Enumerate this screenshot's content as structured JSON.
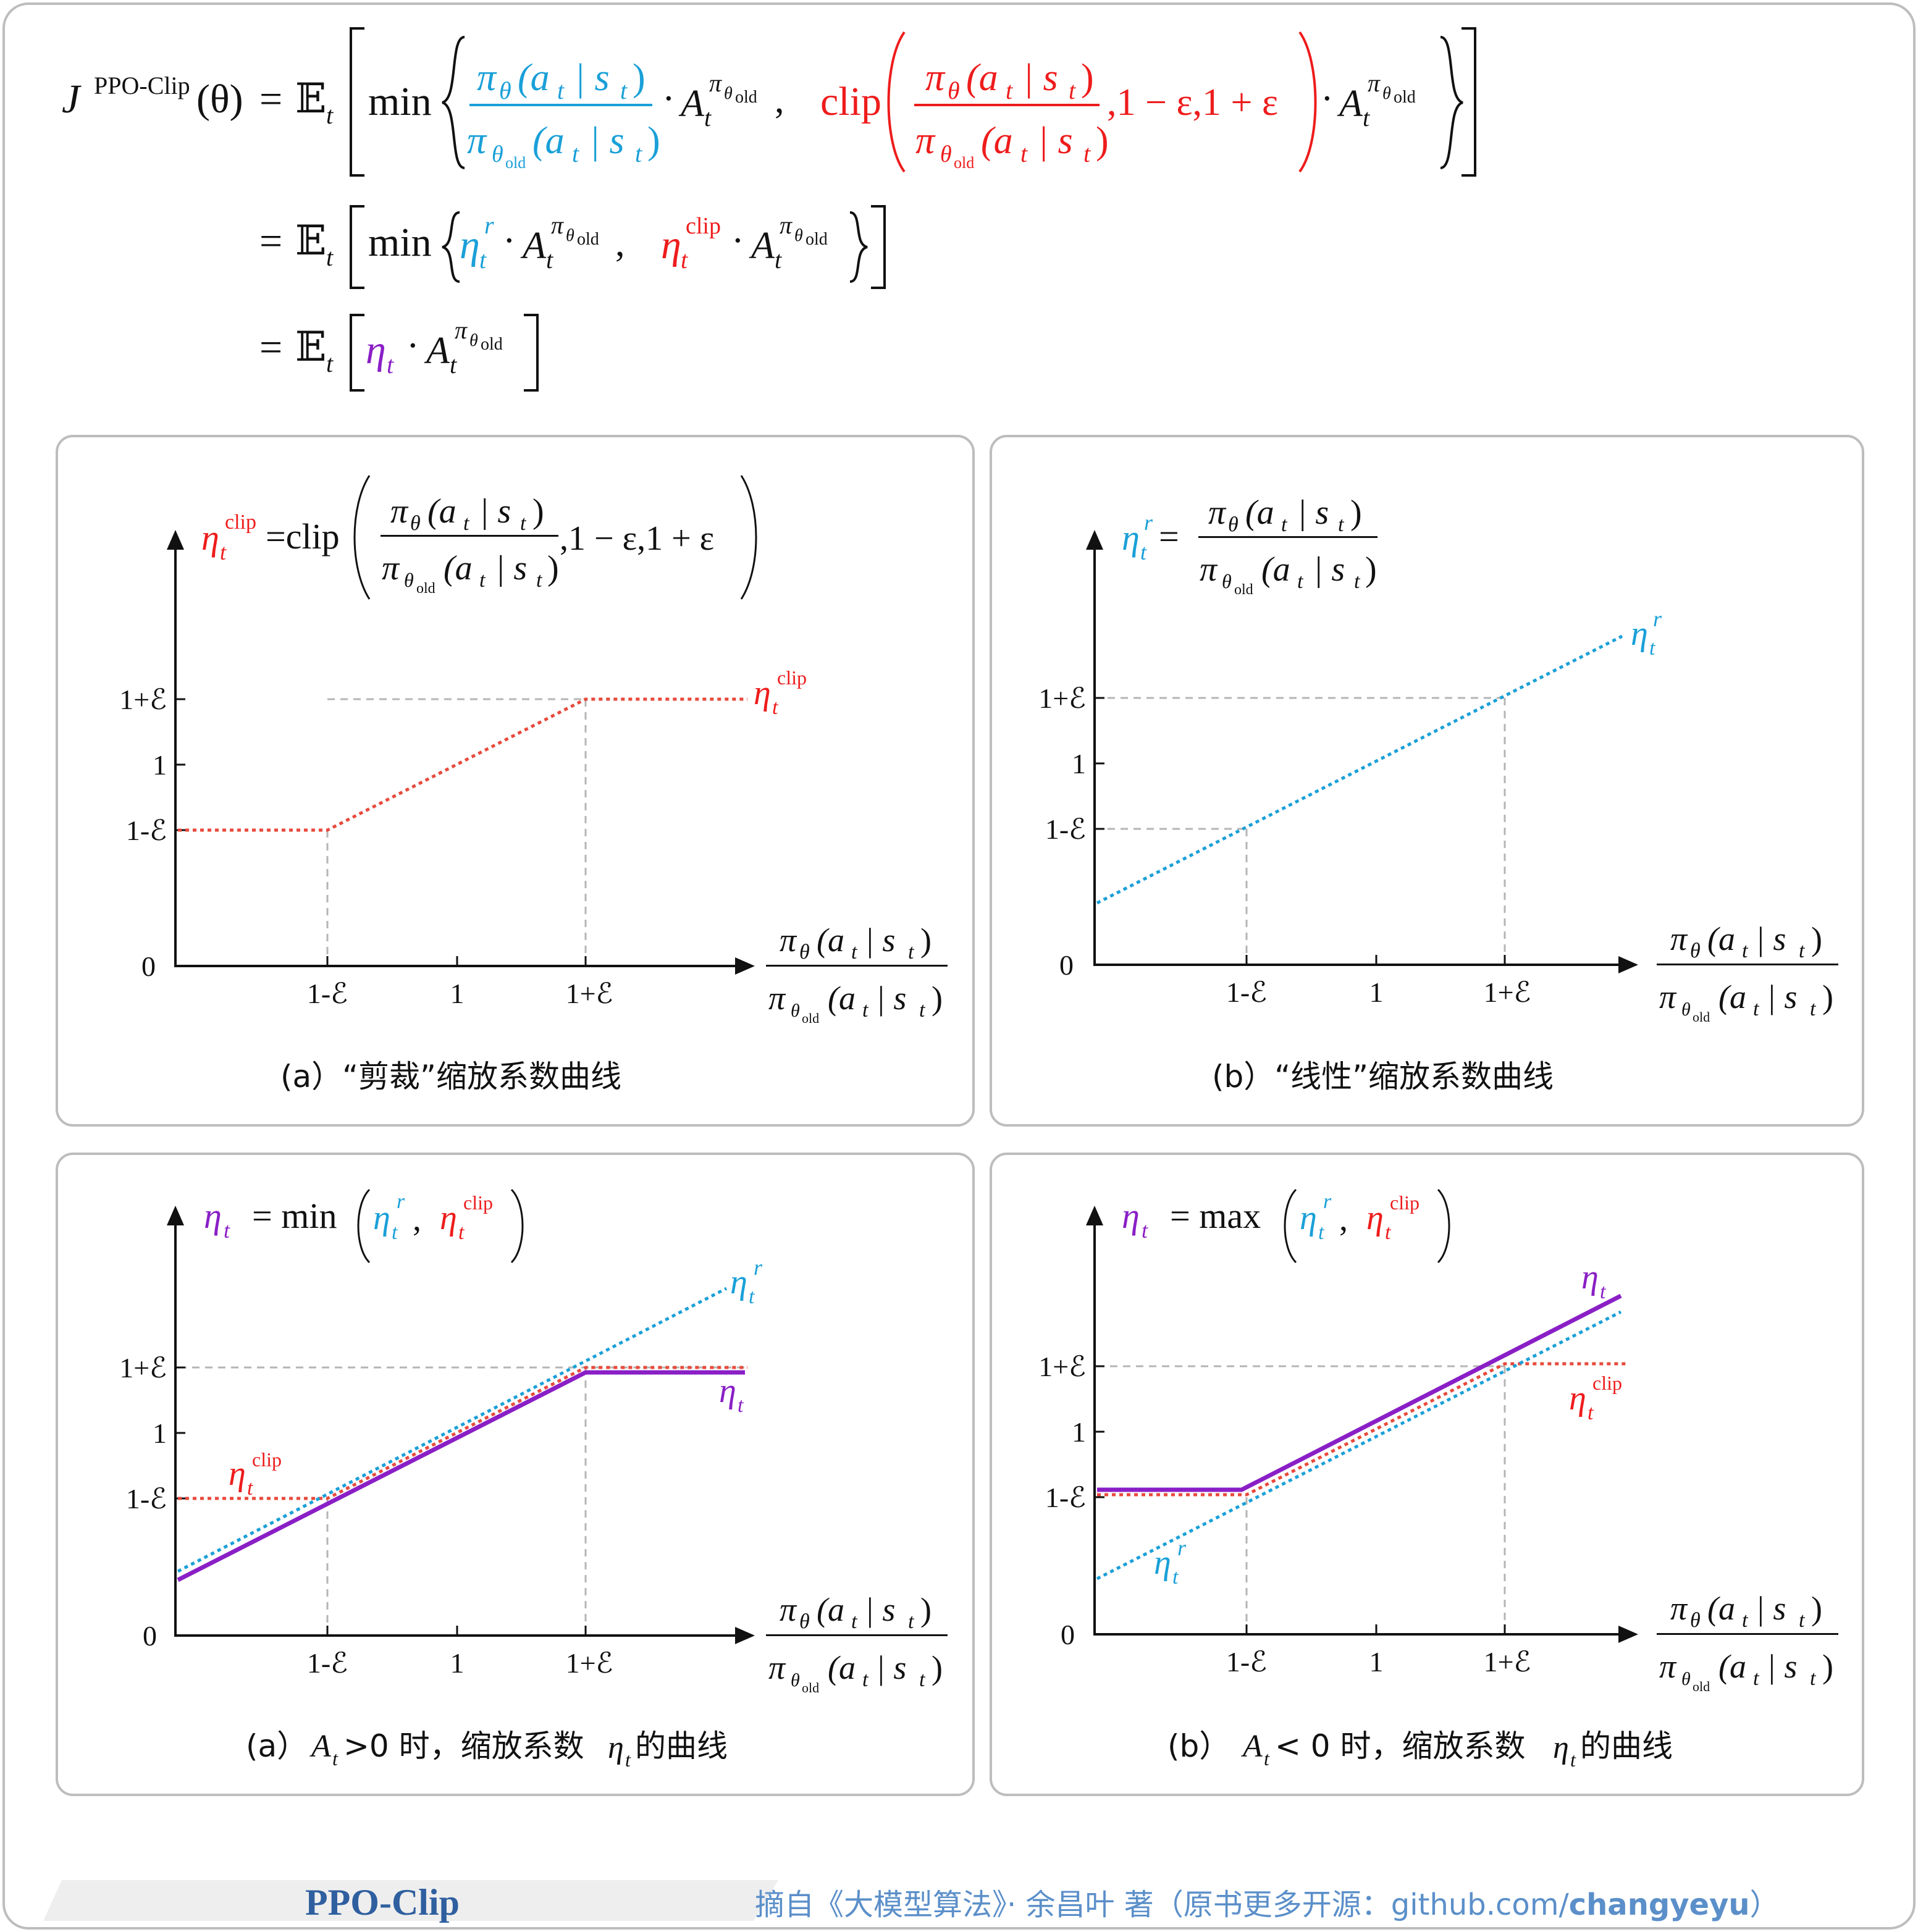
{
  "colors": {
    "black": "#111111",
    "blue": "#1aa0d8",
    "red": "#ee1c1c",
    "purple": "#8a1fc6",
    "guide": "#b5b5b5",
    "footer_title": "#2f5f9f",
    "footer_credit": "#5b8fc9",
    "frame": "#bdbdbd"
  },
  "formula": {
    "line1": {
      "lhs_symbol": "J",
      "lhs_superscript": "PPO-Clip",
      "lhs_argument": "(θ)",
      "equals": "=",
      "expectation": "𝔼",
      "expectation_sub": "t",
      "min_word": "min",
      "ratio_numerator": "π",
      "ratio_numerator_sub": "θ",
      "ratio_numerator_arg": "(a",
      "ratio_numerator_arg_sub": "t",
      "ratio_numerator_arg_rest": "| s",
      "ratio_numerator_arg_rest_sub": "t",
      "ratio_close": ")",
      "ratio_denominator": "π",
      "ratio_denominator_sub": "θ",
      "ratio_denominator_subsub": "old",
      "advantage": "A",
      "advantage_sub": "t",
      "advantage_sup": "π",
      "advantage_sup_sub": "θ",
      "advantage_sup_subsub": "old",
      "dot": "·",
      "comma": ",",
      "clip_word": "clip",
      "clip_bounds": ",1 − ε,1 + ε"
    },
    "line2": {
      "equals": "=",
      "expectation": "𝔼",
      "expectation_sub": "t",
      "min_word": "min",
      "eta": "η",
      "eta_sub": "t",
      "eta_r_sup": "r",
      "eta_clip_sup": "clip",
      "dot": "·",
      "comma": ",",
      "advantage": "A",
      "advantage_sub": "t",
      "advantage_sup": "π",
      "advantage_sup_sub": "θ",
      "advantage_sup_subsub": "old"
    },
    "line3": {
      "equals": "=",
      "expectation": "𝔼",
      "expectation_sub": "t",
      "eta": "η",
      "eta_sub": "t",
      "dot": "·",
      "advantage": "A",
      "advantage_sub": "t",
      "advantage_sup": "π",
      "advantage_sup_sub": "θ",
      "advantage_sup_subsub": "old"
    }
  },
  "panels": [
    {
      "id": "clip-curve",
      "caption": "(a）“剪裁”缩放系数曲线",
      "header": {
        "eta": "η",
        "eta_sub": "t",
        "eta_sup": "clip",
        "eq": "=clip",
        "numer": "π",
        "numer_sub": "θ",
        "numer_arg": "(a",
        "numer_arg_sub": "t",
        "numer_rest": "| s",
        "numer_rest_sub": "t",
        "close": ")",
        "denom": "π",
        "denom_sub": "θ",
        "denom_subsub": "old",
        "bounds": ",1 − ε,1 + ε"
      },
      "y_ticks": [
        "1+ℰ",
        "1",
        "1-ℰ",
        "0"
      ],
      "x_ticks": [
        "1-ℰ",
        "1",
        "1+ℰ"
      ],
      "x_axis_label": {
        "numer": "π",
        "numer_sub": "θ",
        "numer_arg": "(a",
        "numer_arg_sub": "t",
        "numer_rest": "| s",
        "numer_rest_sub": "t",
        "close": ")",
        "denom": "π",
        "denom_sub": "θ",
        "denom_subsub": "old"
      },
      "curve_labels": [
        {
          "eta": "η",
          "sub": "t",
          "sup": "clip",
          "color": "red"
        }
      ]
    },
    {
      "id": "linear-curve",
      "caption": "(b）“线性”缩放系数曲线",
      "header": {
        "eta": "η",
        "eta_sub": "t",
        "eta_sup": "r",
        "eq": "=",
        "numer": "π",
        "numer_sub": "θ",
        "numer_arg": "(a",
        "numer_arg_sub": "t",
        "numer_rest": "| s",
        "numer_rest_sub": "t",
        "close": ")",
        "denom": "π",
        "denom_sub": "θ",
        "denom_subsub": "old"
      },
      "y_ticks": [
        "1+ℰ",
        "1",
        "1-ℰ",
        "0"
      ],
      "x_ticks": [
        "1-ℰ",
        "1",
        "1+ℰ"
      ],
      "x_axis_label": {
        "numer": "π",
        "numer_sub": "θ",
        "numer_arg": "(a",
        "numer_arg_sub": "t",
        "numer_rest": "| s",
        "numer_rest_sub": "t",
        "close": ")",
        "denom": "π",
        "denom_sub": "θ",
        "denom_subsub": "old"
      },
      "curve_labels": [
        {
          "eta": "η",
          "sub": "t",
          "sup": "r",
          "color": "blue"
        }
      ]
    },
    {
      "id": "min-curve",
      "caption_prefix": "(a）",
      "caption_var": "A",
      "caption_var_sub": "t",
      "caption_cond": ">0 时，缩放系数",
      "caption_eta": "η",
      "caption_eta_sub": "t",
      "caption_suffix": "的曲线",
      "header": {
        "eta": "η",
        "eta_sub": "t",
        "eq": "= min",
        "r_eta": "η",
        "r_sub": "t",
        "r_sup": "r",
        "comma": ",",
        "c_eta": "η",
        "c_sub": "t",
        "c_sup": "clip"
      },
      "y_ticks": [
        "1+ℰ",
        "1",
        "1-ℰ",
        "0"
      ],
      "x_ticks": [
        "1-ℰ",
        "1",
        "1+ℰ"
      ],
      "x_axis_label": {
        "numer": "π",
        "numer_sub": "θ",
        "numer_arg": "(a",
        "numer_arg_sub": "t",
        "numer_rest": "| s",
        "numer_rest_sub": "t",
        "close": ")",
        "denom": "π",
        "denom_sub": "θ",
        "denom_subsub": "old"
      },
      "curve_labels": [
        {
          "eta": "η",
          "sub": "t",
          "sup": "r",
          "color": "blue"
        },
        {
          "eta": "η",
          "sub": "t",
          "sup": "",
          "color": "purple"
        },
        {
          "eta": "η",
          "sub": "t",
          "sup": "clip",
          "color": "red"
        }
      ]
    },
    {
      "id": "max-curve",
      "caption_prefix": "(b）",
      "caption_var": "A",
      "caption_var_sub": "t",
      "caption_cond": "< 0 时，缩放系数",
      "caption_eta": "η",
      "caption_eta_sub": "t",
      "caption_suffix": "的曲线",
      "header": {
        "eta": "η",
        "eta_sub": "t",
        "eq": "= max",
        "r_eta": "η",
        "r_sub": "t",
        "r_sup": "r",
        "comma": ",",
        "c_eta": "η",
        "c_sub": "t",
        "c_sup": "clip"
      },
      "y_ticks": [
        "1+ℰ",
        "1",
        "1-ℰ",
        "0"
      ],
      "x_ticks": [
        "1-ℰ",
        "1",
        "1+ℰ"
      ],
      "x_axis_label": {
        "numer": "π",
        "numer_sub": "θ",
        "numer_arg": "(a",
        "numer_arg_sub": "t",
        "numer_rest": "| s",
        "numer_rest_sub": "t",
        "close": ")",
        "denom": "π",
        "denom_sub": "θ",
        "denom_subsub": "old"
      },
      "curve_labels": [
        {
          "eta": "η",
          "sub": "t",
          "sup": "",
          "color": "purple"
        },
        {
          "eta": "η",
          "sub": "t",
          "sup": "clip",
          "color": "red"
        },
        {
          "eta": "η",
          "sub": "t",
          "sup": "r",
          "color": "blue"
        }
      ]
    }
  ],
  "footer": {
    "title": "PPO-Clip",
    "credit_prefix": "摘自《大模型算法》· 余昌叶 著（原书更多开源：github.com/",
    "credit_handle": "changyeyu",
    "credit_suffix": "）"
  }
}
